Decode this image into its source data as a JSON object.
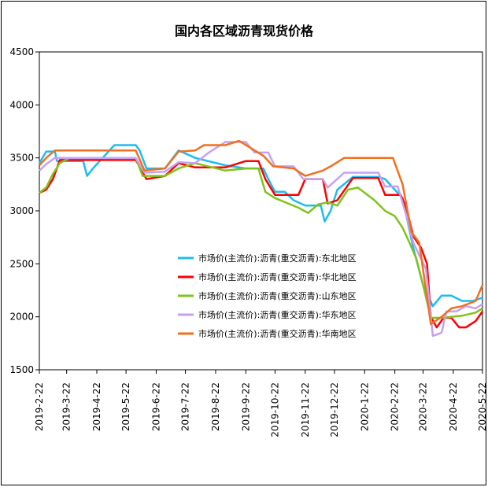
{
  "chart_data": {
    "type": "line",
    "title": "国内各区域沥青现货价格",
    "ylim": [
      1500,
      4500
    ],
    "yticks": [
      1500,
      2000,
      2500,
      3000,
      3500,
      4000,
      4500
    ],
    "x_tick_labels": [
      "2019-2-22",
      "2019-3-22",
      "2019-4-22",
      "2019-5-22",
      "2019-6-22",
      "2019-7-22",
      "2019-8-22",
      "2019-9-22",
      "2019-10-22",
      "2019-11-22",
      "2019-12-22",
      "2020-1-22",
      "2020-2-22",
      "2020-3-22",
      "2020-4-22",
      "2020-5-22"
    ],
    "x_range": [
      "2019-02-22",
      "2020-05-22"
    ],
    "grid": false,
    "legend_position": "center-right",
    "series": [
      {
        "name": "市场价(主流价):沥青(重交沥青):东北地区",
        "color": "#1ebcf0",
        "points": [
          [
            "2019-02-22",
            3450
          ],
          [
            "2019-03-01",
            3560
          ],
          [
            "2019-03-10",
            3560
          ],
          [
            "2019-03-12",
            3470
          ],
          [
            "2019-04-08",
            3470
          ],
          [
            "2019-04-12",
            3330
          ],
          [
            "2019-04-18",
            3400
          ],
          [
            "2019-05-01",
            3530
          ],
          [
            "2019-05-10",
            3620
          ],
          [
            "2019-06-01",
            3620
          ],
          [
            "2019-06-05",
            3570
          ],
          [
            "2019-06-12",
            3400
          ],
          [
            "2019-07-01",
            3400
          ],
          [
            "2019-07-15",
            3570
          ],
          [
            "2019-08-01",
            3500
          ],
          [
            "2019-09-01",
            3430
          ],
          [
            "2019-09-22",
            3400
          ],
          [
            "2019-10-10",
            3400
          ],
          [
            "2019-10-15",
            3300
          ],
          [
            "2019-10-22",
            3180
          ],
          [
            "2019-11-01",
            3180
          ],
          [
            "2019-11-10",
            3100
          ],
          [
            "2019-11-22",
            3050
          ],
          [
            "2019-12-08",
            3050
          ],
          [
            "2019-12-12",
            2900
          ],
          [
            "2019-12-18",
            3000
          ],
          [
            "2019-12-25",
            3200
          ],
          [
            "2020-01-10",
            3320
          ],
          [
            "2020-02-05",
            3320
          ],
          [
            "2020-02-12",
            3300
          ],
          [
            "2020-02-22",
            3200
          ],
          [
            "2020-03-01",
            3120
          ],
          [
            "2020-03-12",
            2650
          ],
          [
            "2020-03-22",
            2300
          ],
          [
            "2020-03-29",
            2160
          ],
          [
            "2020-04-01",
            2100
          ],
          [
            "2020-04-10",
            2200
          ],
          [
            "2020-04-20",
            2200
          ],
          [
            "2020-05-01",
            2150
          ],
          [
            "2020-05-12",
            2150
          ],
          [
            "2020-05-22",
            2180
          ]
        ]
      },
      {
        "name": "市场价(主流价):沥青(重交沥青):华北地区",
        "color": "#ff0000",
        "points": [
          [
            "2019-02-22",
            3170
          ],
          [
            "2019-03-01",
            3200
          ],
          [
            "2019-03-08",
            3300
          ],
          [
            "2019-03-15",
            3480
          ],
          [
            "2019-06-01",
            3480
          ],
          [
            "2019-06-12",
            3300
          ],
          [
            "2019-07-01",
            3330
          ],
          [
            "2019-07-15",
            3450
          ],
          [
            "2019-08-01",
            3410
          ],
          [
            "2019-09-01",
            3410
          ],
          [
            "2019-09-22",
            3470
          ],
          [
            "2019-10-05",
            3470
          ],
          [
            "2019-10-12",
            3300
          ],
          [
            "2019-10-22",
            3150
          ],
          [
            "2019-11-15",
            3150
          ],
          [
            "2019-11-22",
            3300
          ],
          [
            "2019-12-10",
            3300
          ],
          [
            "2019-12-15",
            3070
          ],
          [
            "2019-12-25",
            3100
          ],
          [
            "2020-01-10",
            3310
          ],
          [
            "2020-02-05",
            3310
          ],
          [
            "2020-02-12",
            3150
          ],
          [
            "2020-02-28",
            3150
          ],
          [
            "2020-03-05",
            3020
          ],
          [
            "2020-03-12",
            2760
          ],
          [
            "2020-03-20",
            2650
          ],
          [
            "2020-03-26",
            2500
          ],
          [
            "2020-03-30",
            2000
          ],
          [
            "2020-04-05",
            1900
          ],
          [
            "2020-04-12",
            1990
          ],
          [
            "2020-04-20",
            1990
          ],
          [
            "2020-04-28",
            1900
          ],
          [
            "2020-05-05",
            1900
          ],
          [
            "2020-05-15",
            1960
          ],
          [
            "2020-05-22",
            2050
          ]
        ]
      },
      {
        "name": "市场价(主流价):沥青(重交沥青):山东地区",
        "color": "#7fc31c",
        "points": [
          [
            "2019-02-22",
            3170
          ],
          [
            "2019-03-01",
            3220
          ],
          [
            "2019-03-08",
            3350
          ],
          [
            "2019-03-15",
            3450
          ],
          [
            "2019-03-25",
            3500
          ],
          [
            "2019-06-01",
            3500
          ],
          [
            "2019-06-08",
            3330
          ],
          [
            "2019-07-01",
            3330
          ],
          [
            "2019-07-15",
            3400
          ],
          [
            "2019-08-01",
            3450
          ],
          [
            "2019-09-01",
            3380
          ],
          [
            "2019-09-22",
            3400
          ],
          [
            "2019-10-05",
            3400
          ],
          [
            "2019-10-12",
            3180
          ],
          [
            "2019-10-22",
            3120
          ],
          [
            "2019-11-15",
            3030
          ],
          [
            "2019-11-25",
            2980
          ],
          [
            "2019-12-05",
            3060
          ],
          [
            "2019-12-15",
            3080
          ],
          [
            "2019-12-25",
            3050
          ],
          [
            "2020-01-05",
            3200
          ],
          [
            "2020-01-15",
            3220
          ],
          [
            "2020-02-01",
            3100
          ],
          [
            "2020-02-12",
            3000
          ],
          [
            "2020-02-22",
            2950
          ],
          [
            "2020-03-01",
            2840
          ],
          [
            "2020-03-08",
            2700
          ],
          [
            "2020-03-15",
            2550
          ],
          [
            "2020-03-22",
            2300
          ],
          [
            "2020-03-30",
            1990
          ],
          [
            "2020-04-10",
            1990
          ],
          [
            "2020-04-20",
            2000
          ],
          [
            "2020-05-01",
            2010
          ],
          [
            "2020-05-15",
            2040
          ],
          [
            "2020-05-22",
            2080
          ]
        ]
      },
      {
        "name": "市场价(主流价):沥青(重交沥青):华东地区",
        "color": "#c8a0f0",
        "points": [
          [
            "2019-02-22",
            3380
          ],
          [
            "2019-03-01",
            3440
          ],
          [
            "2019-03-10",
            3500
          ],
          [
            "2019-06-01",
            3500
          ],
          [
            "2019-06-10",
            3360
          ],
          [
            "2019-07-01",
            3370
          ],
          [
            "2019-07-15",
            3460
          ],
          [
            "2019-08-01",
            3450
          ],
          [
            "2019-08-15",
            3550
          ],
          [
            "2019-09-01",
            3650
          ],
          [
            "2019-09-22",
            3650
          ],
          [
            "2019-10-01",
            3550
          ],
          [
            "2019-10-15",
            3550
          ],
          [
            "2019-10-22",
            3420
          ],
          [
            "2019-11-10",
            3420
          ],
          [
            "2019-11-20",
            3300
          ],
          [
            "2019-12-10",
            3300
          ],
          [
            "2019-12-15",
            3220
          ],
          [
            "2020-01-01",
            3360
          ],
          [
            "2020-02-05",
            3360
          ],
          [
            "2020-02-12",
            3230
          ],
          [
            "2020-02-25",
            3230
          ],
          [
            "2020-03-05",
            2950
          ],
          [
            "2020-03-12",
            2700
          ],
          [
            "2020-03-25",
            2450
          ],
          [
            "2020-04-01",
            1820
          ],
          [
            "2020-04-10",
            1850
          ],
          [
            "2020-04-15",
            2050
          ],
          [
            "2020-04-25",
            2050
          ],
          [
            "2020-05-05",
            2100
          ],
          [
            "2020-05-15",
            2080
          ],
          [
            "2020-05-22",
            2120
          ]
        ]
      },
      {
        "name": "市场价(主流价):沥青(重交沥青):华南地区",
        "color": "#f07020",
        "points": [
          [
            "2019-02-22",
            3430
          ],
          [
            "2019-03-01",
            3500
          ],
          [
            "2019-03-10",
            3570
          ],
          [
            "2019-06-01",
            3570
          ],
          [
            "2019-06-10",
            3380
          ],
          [
            "2019-07-01",
            3400
          ],
          [
            "2019-07-15",
            3560
          ],
          [
            "2019-08-01",
            3570
          ],
          [
            "2019-08-10",
            3620
          ],
          [
            "2019-09-01",
            3620
          ],
          [
            "2019-09-15",
            3660
          ],
          [
            "2019-10-01",
            3570
          ],
          [
            "2019-10-10",
            3520
          ],
          [
            "2019-10-20",
            3420
          ],
          [
            "2019-11-10",
            3400
          ],
          [
            "2019-11-22",
            3330
          ],
          [
            "2019-12-10",
            3380
          ],
          [
            "2019-12-20",
            3430
          ],
          [
            "2020-01-01",
            3500
          ],
          [
            "2020-02-20",
            3500
          ],
          [
            "2020-03-01",
            3250
          ],
          [
            "2020-03-10",
            2800
          ],
          [
            "2020-03-18",
            2700
          ],
          [
            "2020-03-30",
            1930
          ],
          [
            "2020-04-10",
            2000
          ],
          [
            "2020-04-20",
            2080
          ],
          [
            "2020-05-01",
            2100
          ],
          [
            "2020-05-15",
            2150
          ],
          [
            "2020-05-22",
            2300
          ]
        ]
      }
    ]
  }
}
